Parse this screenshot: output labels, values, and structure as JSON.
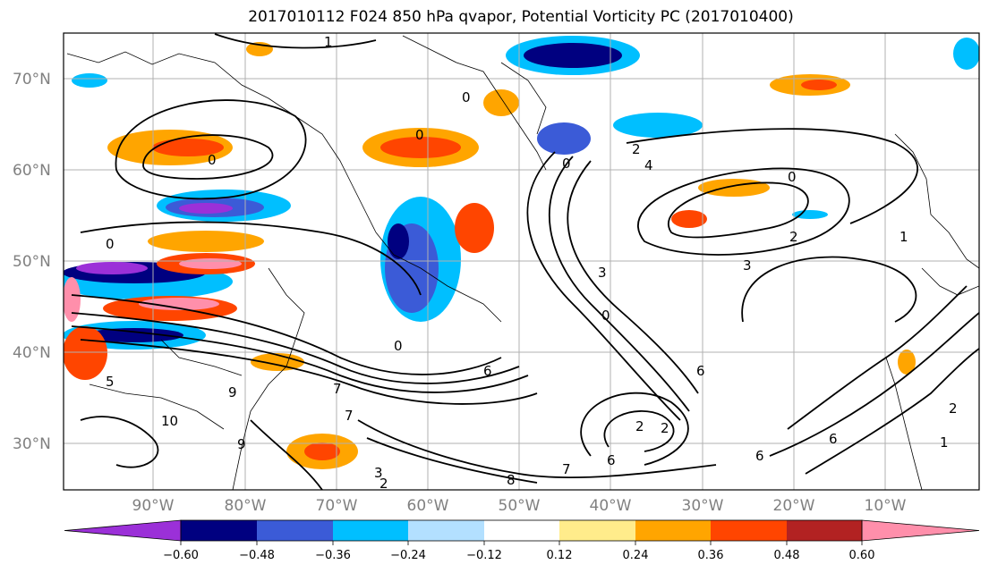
{
  "title": "2017010112 F024 850 hPa qvapor, Potential Vorticity PC (2017010400)",
  "map": {
    "lat_labels": [
      "70°N",
      "60°N",
      "50°N",
      "40°N",
      "30°N"
    ],
    "lon_labels": [
      "90°W",
      "80°W",
      "70°W",
      "60°W",
      "50°W",
      "40°W",
      "30°W",
      "20°W",
      "10°W"
    ],
    "contour_labels": [
      "1",
      "0",
      "0",
      "0",
      "0",
      "0",
      "2",
      "4",
      "0",
      "2",
      "3",
      "3",
      "1",
      "0",
      "0",
      "7",
      "7",
      "9",
      "9",
      "10",
      "6",
      "6",
      "6",
      "2",
      "2",
      "6",
      "3",
      "2",
      "8",
      "7",
      "6",
      "5",
      "2",
      "1"
    ]
  },
  "colorbar": {
    "tick_labels": [
      "−0.60",
      "−0.48",
      "−0.36",
      "−0.24",
      "−0.12",
      "0.12",
      "0.24",
      "0.36",
      "0.48",
      "0.60"
    ],
    "colors": [
      "#9b30d8",
      "#000080",
      "#3b5bd7",
      "#00bfff",
      "#b3e0ff",
      "#ffffff",
      "#ffec8b",
      "#ffa500",
      "#ff4500",
      "#b22222",
      "#ff8fab",
      "#ff69b4"
    ]
  }
}
